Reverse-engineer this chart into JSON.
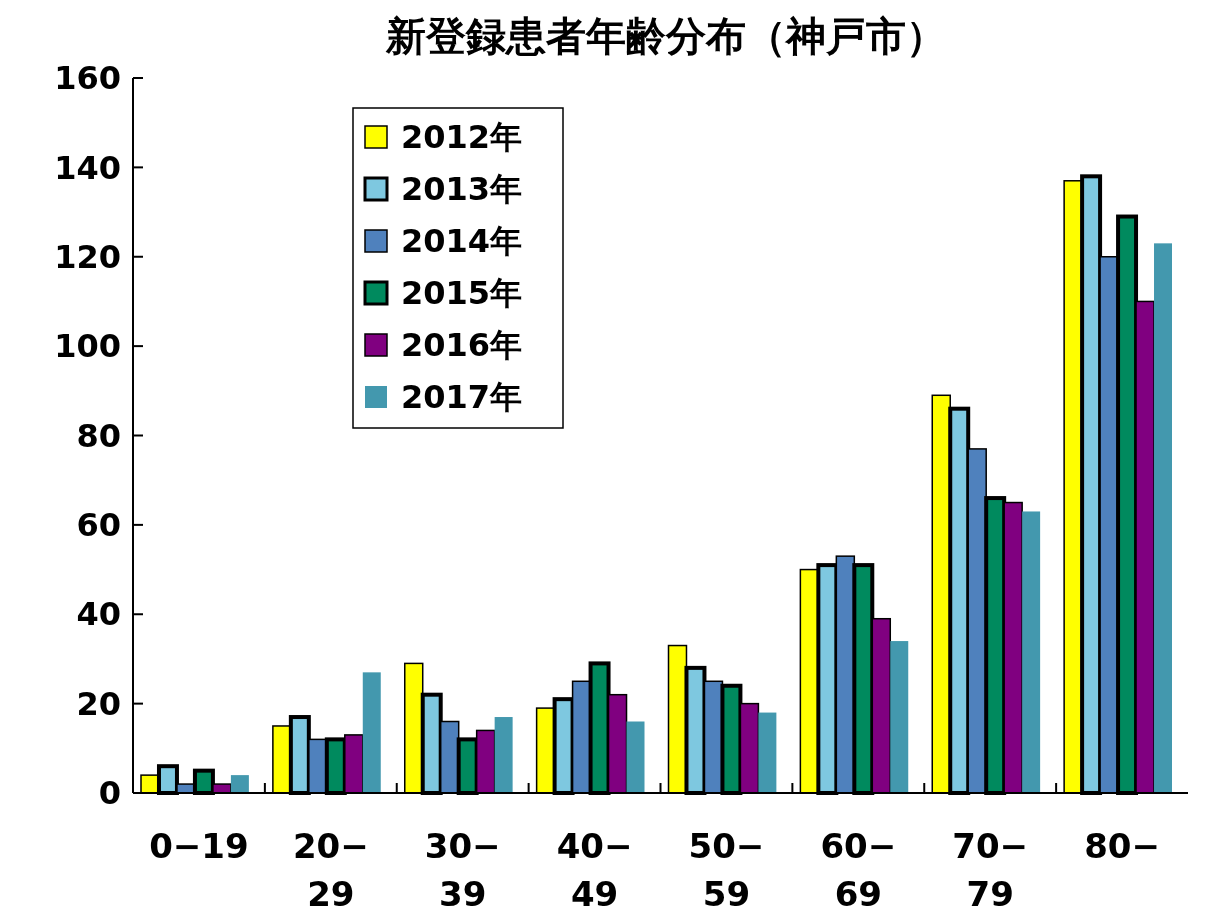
{
  "chart_data": {
    "type": "bar",
    "title": "新登録患者年齢分布（神戸市）",
    "categories": [
      "0−19",
      "20−29",
      "30−39",
      "40−49",
      "50−59",
      "60−69",
      "70−79",
      "80−"
    ],
    "series": [
      {
        "name": "2012年",
        "color": "#ffff00",
        "values": [
          4,
          15,
          29,
          19,
          33,
          50,
          89,
          137
        ]
      },
      {
        "name": "2013年",
        "color": "#7ec8e0",
        "values": [
          6,
          17,
          22,
          21,
          28,
          51,
          86,
          138
        ]
      },
      {
        "name": "2014年",
        "color": "#4f81bd",
        "values": [
          2,
          12,
          16,
          25,
          25,
          53,
          77,
          120
        ]
      },
      {
        "name": "2015年",
        "color": "#008a5e",
        "values": [
          5,
          12,
          12,
          29,
          24,
          51,
          66,
          129
        ]
      },
      {
        "name": "2016年",
        "color": "#800080",
        "values": [
          2,
          13,
          14,
          22,
          20,
          39,
          65,
          110
        ]
      },
      {
        "name": "2017年",
        "color": "#4398ae",
        "values": [
          4,
          27,
          17,
          16,
          18,
          34,
          63,
          123
        ]
      }
    ],
    "ylim": [
      0,
      160
    ],
    "yticks": [
      0,
      20,
      40,
      60,
      80,
      100,
      120,
      140,
      160
    ],
    "grid": false,
    "legend": "top left"
  }
}
